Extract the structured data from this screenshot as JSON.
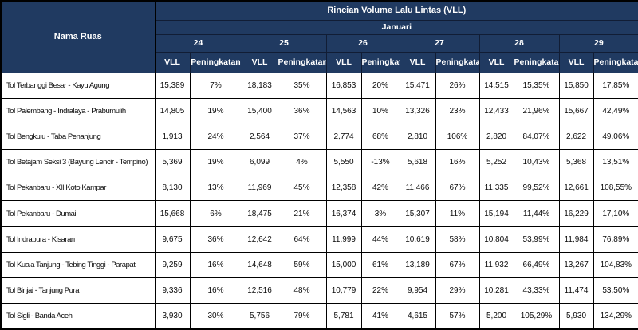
{
  "table": {
    "corner_header": "Nama Ruas",
    "title": "Rincian Volume Lalu Lintas (VLL)",
    "month_header": "Januari",
    "dates": [
      "24",
      "25",
      "26",
      "27",
      "28",
      "29"
    ],
    "sub_headers": [
      "VLL",
      "Peningkatan"
    ],
    "rows": [
      {
        "name": "Tol Terbanggi Besar - Kayu Agung",
        "values": [
          "15,389",
          "7%",
          "18,183",
          "35%",
          "16,853",
          "20%",
          "15,471",
          "26%",
          "14,515",
          "15,35%",
          "15,850",
          "17,85%"
        ]
      },
      {
        "name": "Tol Palembang - Indralaya - Prabumulih",
        "values": [
          "14,805",
          "19%",
          "15,400",
          "36%",
          "14,563",
          "10%",
          "13,326",
          "23%",
          "12,433",
          "21,96%",
          "15,667",
          "42,49%"
        ]
      },
      {
        "name": "Tol Bengkulu - Taba Penanjung",
        "values": [
          "1,913",
          "24%",
          "2,564",
          "37%",
          "2,774",
          "68%",
          "2,810",
          "106%",
          "2,820",
          "84,07%",
          "2,622",
          "49,06%"
        ]
      },
      {
        "name": "Tol Betajam Seksi 3 (Bayung Lencir - Tempino)",
        "values": [
          "5,369",
          "19%",
          "6,099",
          "4%",
          "5,550",
          "-13%",
          "5,618",
          "16%",
          "5,252",
          "10,43%",
          "5,368",
          "13,51%"
        ]
      },
      {
        "name": "Tol Pekanbaru - XII Koto Kampar",
        "values": [
          "8,130",
          "13%",
          "11,969",
          "45%",
          "12,358",
          "42%",
          "11,466",
          "67%",
          "11,335",
          "99,52%",
          "12,661",
          "108,55%"
        ]
      },
      {
        "name": "Tol Pekanbaru - Dumai",
        "values": [
          "15,668",
          "6%",
          "18,475",
          "21%",
          "16,374",
          "3%",
          "15,307",
          "11%",
          "15,194",
          "11,44%",
          "16,229",
          "17,10%"
        ]
      },
      {
        "name": "Tol Indrapura - Kisaran",
        "values": [
          "9,675",
          "36%",
          "12,642",
          "64%",
          "11,999",
          "44%",
          "10,619",
          "58%",
          "10,804",
          "53,99%",
          "11,984",
          "76,89%"
        ]
      },
      {
        "name": "Tol Kuala Tanjung - Tebing Tinggi - Parapat",
        "values": [
          "9,259",
          "16%",
          "14,648",
          "59%",
          "15,000",
          "61%",
          "13,189",
          "67%",
          "11,932",
          "66,49%",
          "13,267",
          "104,83%"
        ]
      },
      {
        "name": "Tol Binjai - Tanjung Pura",
        "values": [
          "9,336",
          "16%",
          "12,516",
          "48%",
          "10,779",
          "22%",
          "9,954",
          "29%",
          "10,281",
          "43,33%",
          "11,474",
          "53,50%"
        ]
      },
      {
        "name": "Tol Sigli - Banda Aceh",
        "values": [
          "3,930",
          "30%",
          "5,756",
          "79%",
          "5,781",
          "41%",
          "4,615",
          "57%",
          "5,200",
          "105,29%",
          "5,930",
          "134,29%"
        ]
      }
    ]
  },
  "colors": {
    "header_bg": "#203a61",
    "header_text": "#ffffff",
    "grid_border": "#000000",
    "cell_bg": "#ffffff",
    "cell_text": "#000000"
  }
}
